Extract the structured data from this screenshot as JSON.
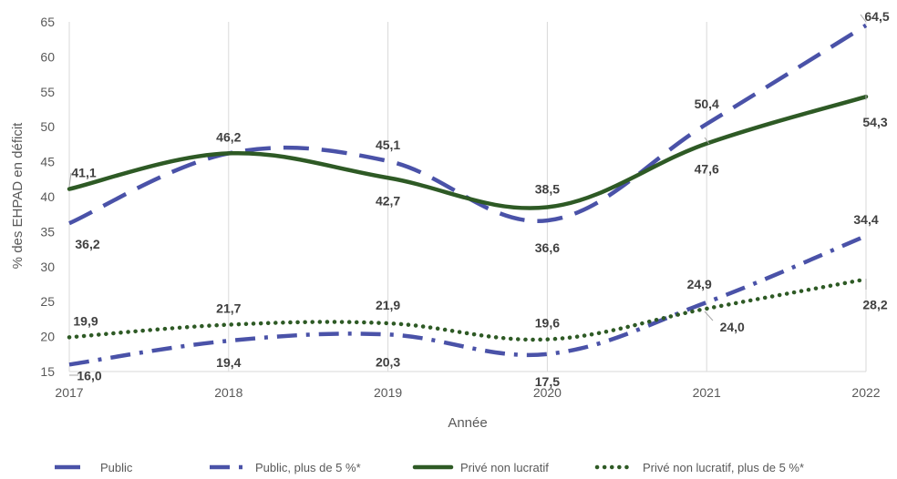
{
  "chart_data": {
    "type": "line",
    "title": "",
    "xlabel": "Année",
    "ylabel": "% des EHPAD en déficit",
    "x": [
      "2017",
      "2018",
      "2019",
      "2020",
      "2021",
      "2022"
    ],
    "ylim": [
      15,
      65
    ],
    "yticks": [
      "15",
      "20",
      "25",
      "30",
      "35",
      "40",
      "45",
      "50",
      "55",
      "60",
      "65"
    ],
    "grid": "vertical",
    "legend_position": "bottom",
    "series": [
      {
        "name": "Public",
        "values": [
          36.2,
          46.2,
          45.1,
          36.6,
          50.4,
          64.5
        ],
        "labels": [
          "36,2",
          "46,2",
          "45,1",
          "36,6",
          "50,4",
          "64,5"
        ],
        "color": "#4a52a8",
        "style": "dash"
      },
      {
        "name": "Public, plus de 5 %*",
        "values": [
          16.0,
          19.4,
          20.3,
          17.5,
          24.9,
          34.4
        ],
        "labels": [
          "16,0",
          "19,4",
          "20,3",
          "17,5",
          "24,9",
          "34,4"
        ],
        "color": "#4a52a8",
        "style": "dashdot"
      },
      {
        "name": "Privé non lucratif",
        "values": [
          41.1,
          46.2,
          42.7,
          38.5,
          47.6,
          54.3
        ],
        "labels": [
          "41,1",
          "",
          "42,7",
          "38,5",
          "47,6",
          "54,3"
        ],
        "color": "#2e5a25",
        "style": "solid"
      },
      {
        "name": "Privé non lucratif, plus de 5 %*",
        "values": [
          19.9,
          21.7,
          21.9,
          19.6,
          24.0,
          28.2
        ],
        "labels": [
          "19,9",
          "21,7",
          "21,9",
          "19,6",
          "24,0",
          "28,2"
        ],
        "color": "#2e5a25",
        "style": "dot"
      }
    ]
  }
}
